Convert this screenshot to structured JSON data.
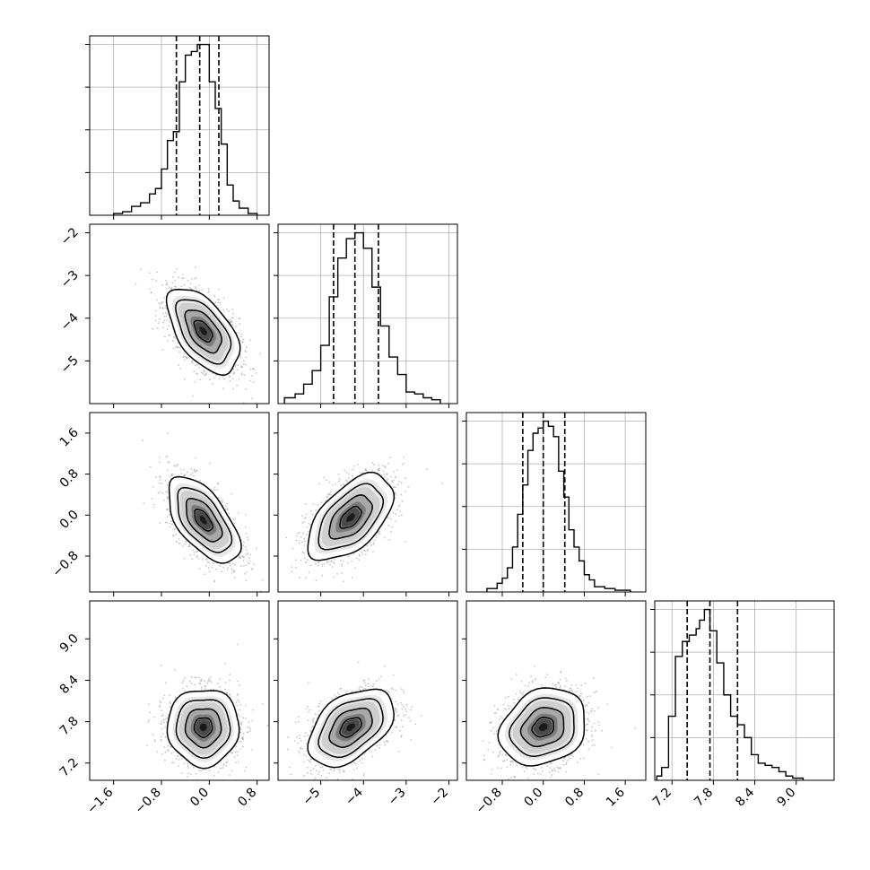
{
  "chart_data": {
    "type": "corner",
    "description_type": "corner-plot",
    "parameters": [
      {
        "range": [
          -2.0,
          1.0
        ],
        "ticks": [
          -1.6,
          -0.8,
          0.0,
          0.8
        ],
        "tick_labels": [
          "−1.6",
          "−0.8",
          "0.0",
          "0.8"
        ],
        "quantiles": [
          -0.55,
          -0.16,
          0.16
        ],
        "hist_edges": [
          -1.6,
          -1.45,
          -1.3,
          -1.15,
          -1.0,
          -0.9,
          -0.8,
          -0.7,
          -0.6,
          -0.5,
          -0.4,
          -0.3,
          -0.2,
          -0.1,
          0.0,
          0.1,
          0.2,
          0.3,
          0.4,
          0.5,
          0.65,
          0.8
        ],
        "hist_values": [
          0.01,
          0.02,
          0.05,
          0.07,
          0.12,
          0.15,
          0.26,
          0.42,
          0.47,
          0.75,
          0.9,
          0.92,
          0.96,
          0.96,
          0.75,
          0.6,
          0.4,
          0.17,
          0.08,
          0.04,
          0.01
        ]
      },
      {
        "range": [
          -6.0,
          -1.8
        ],
        "ticks": [
          -5,
          -4,
          -3,
          -2
        ],
        "tick_labels": [
          "−5",
          "−4",
          "−3",
          "−2"
        ],
        "quantiles": [
          -4.7,
          -4.2,
          -3.65
        ],
        "hist_edges": [
          -5.85,
          -5.6,
          -5.4,
          -5.2,
          -5.0,
          -4.8,
          -4.6,
          -4.4,
          -4.2,
          -4.0,
          -3.8,
          -3.6,
          -3.4,
          -3.2,
          -3.0,
          -2.8,
          -2.6,
          -2.4,
          -2.2
        ],
        "hist_values": [
          0.03,
          0.05,
          0.1,
          0.17,
          0.3,
          0.55,
          0.75,
          0.85,
          0.88,
          0.8,
          0.6,
          0.4,
          0.24,
          0.15,
          0.06,
          0.05,
          0.03,
          0.02
        ]
      },
      {
        "range": [
          -1.5,
          2.0
        ],
        "ticks": [
          -0.8,
          0.0,
          0.8,
          1.6
        ],
        "tick_labels": [
          "−0.8",
          "0.0",
          "0.8",
          "1.6"
        ],
        "quantiles": [
          -0.4,
          0.0,
          0.42
        ],
        "hist_edges": [
          -1.1,
          -0.9,
          -0.8,
          -0.7,
          -0.6,
          -0.5,
          -0.4,
          -0.3,
          -0.2,
          -0.1,
          0.0,
          0.1,
          0.2,
          0.3,
          0.4,
          0.5,
          0.6,
          0.7,
          0.8,
          0.9,
          1.0,
          1.2,
          1.4,
          1.7
        ],
        "hist_values": [
          0.02,
          0.05,
          0.08,
          0.14,
          0.26,
          0.45,
          0.62,
          0.82,
          0.92,
          0.95,
          0.99,
          0.96,
          0.9,
          0.7,
          0.55,
          0.36,
          0.26,
          0.18,
          0.1,
          0.07,
          0.03,
          0.02,
          0.01
        ]
      },
      {
        "range": [
          6.95,
          9.55
        ],
        "ticks": [
          7.2,
          7.8,
          8.4,
          9.0
        ],
        "tick_labels": [
          "7.2",
          "7.8",
          "8.4",
          "9.0"
        ],
        "quantiles": [
          7.42,
          7.75,
          8.15
        ],
        "hist_edges": [
          6.98,
          7.05,
          7.15,
          7.25,
          7.35,
          7.45,
          7.55,
          7.6,
          7.67,
          7.75,
          7.85,
          7.95,
          8.05,
          8.15,
          8.25,
          8.35,
          8.45,
          8.55,
          8.65,
          8.75,
          8.85,
          8.95,
          9.05,
          9.1
        ],
        "hist_values": [
          0.02,
          0.06,
          0.3,
          0.58,
          0.65,
          0.68,
          0.71,
          0.75,
          0.8,
          0.7,
          0.55,
          0.4,
          0.3,
          0.26,
          0.2,
          0.12,
          0.08,
          0.07,
          0.06,
          0.04,
          0.02,
          0.01,
          0.01
        ]
      }
    ],
    "pairs": [
      {
        "x": 0,
        "y": 1,
        "center": [
          -0.1,
          -4.3
        ],
        "sigma": [
          0.3,
          0.5
        ],
        "rho": -0.55
      },
      {
        "x": 0,
        "y": 2,
        "center": [
          -0.1,
          -0.1
        ],
        "sigma": [
          0.3,
          0.42
        ],
        "rho": -0.6
      },
      {
        "x": 1,
        "y": 2,
        "center": [
          -4.3,
          -0.05
        ],
        "sigma": [
          0.5,
          0.42
        ],
        "rho": 0.55
      },
      {
        "x": 0,
        "y": 3,
        "center": [
          -0.1,
          7.72
        ],
        "sigma": [
          0.3,
          0.28
        ],
        "rho": 0.0
      },
      {
        "x": 1,
        "y": 3,
        "center": [
          -4.3,
          7.72
        ],
        "sigma": [
          0.5,
          0.28
        ],
        "rho": 0.45
      },
      {
        "x": 2,
        "y": 3,
        "center": [
          0.0,
          7.72
        ],
        "sigma": [
          0.42,
          0.28
        ],
        "rho": 0.2
      }
    ],
    "grid": true,
    "contour_levels_sigma": [
      0.5,
      1.0,
      1.5,
      2.0
    ]
  }
}
